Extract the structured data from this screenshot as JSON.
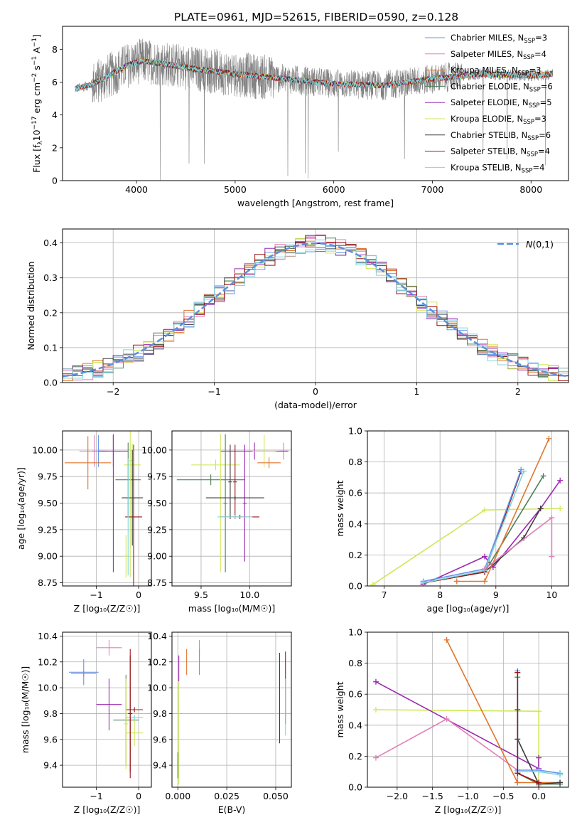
{
  "figure": {
    "title": "PLATE=0961, MJD=52615, FIBERID=0590, z=0.128"
  },
  "chart_data": [
    {
      "id": "spectrum",
      "type": "line",
      "xlabel": "wavelength [Angstrom, rest frame]",
      "ylabel_main": "Flux [f",
      "ylabel_parts": [
        "Flux [f",
        "λ",
        "10",
        "−17",
        " erg cm",
        "−2",
        " s",
        "−1",
        " A",
        "−1",
        "]"
      ],
      "xlim": [
        3250,
        8380
      ],
      "ylim": [
        0,
        9.4
      ],
      "xticks": [
        4000,
        5000,
        6000,
        7000,
        8000
      ],
      "yticks": [
        0,
        2,
        4,
        6,
        8
      ],
      "grid": false,
      "legend_position": "right",
      "data_range": [
        3380,
        8220
      ],
      "series": [
        {
          "name": "Chabrier MILES, N",
          "sub": "SSP",
          "suffix": "=3",
          "color": "#6495ed"
        },
        {
          "name": "Salpeter MILES, N",
          "sub": "SSP",
          "suffix": "=4",
          "color": "#e07fb8"
        },
        {
          "name": "Kroupa MILES, N",
          "sub": "SSP",
          "suffix": "=3",
          "color": "#e0762e"
        },
        {
          "name": "Chabrier ELODIE, N",
          "sub": "SSP",
          "suffix": "=6",
          "color": "#4f7f5a"
        },
        {
          "name": "Salpeter ELODIE, N",
          "sub": "SSP",
          "suffix": "=5",
          "color": "#9b27b0"
        },
        {
          "name": "Kroupa ELODIE, N",
          "sub": "SSP",
          "suffix": "=3",
          "color": "#cfe85a"
        },
        {
          "name": "Chabrier STELIB, N",
          "sub": "SSP",
          "suffix": "=6",
          "color": "#3d3d3d"
        },
        {
          "name": "Salpeter STELIB, N",
          "sub": "SSP",
          "suffix": "=4",
          "color": "#a01515"
        },
        {
          "name": "Kroupa STELIB, N",
          "sub": "SSP",
          "suffix": "=4",
          "color": "#7fd6dc"
        }
      ],
      "data_color": "#808080",
      "continuum_points": [
        [
          3380,
          5.6
        ],
        [
          3520,
          5.8
        ],
        [
          3700,
          6.3
        ],
        [
          3900,
          7.0
        ],
        [
          4050,
          7.3
        ],
        [
          4300,
          7.1
        ],
        [
          4600,
          6.8
        ],
        [
          5000,
          6.5
        ],
        [
          5500,
          6.2
        ],
        [
          6000,
          5.9
        ],
        [
          6500,
          5.8
        ],
        [
          7000,
          6.2
        ],
        [
          7500,
          6.5
        ],
        [
          8000,
          6.4
        ],
        [
          8220,
          6.5
        ]
      ]
    },
    {
      "id": "residuals",
      "type": "bar",
      "xlabel": "(data-model)/error",
      "ylabel": "Normed distribution",
      "xlim": [
        -2.5,
        2.5
      ],
      "ylim": [
        0,
        0.44
      ],
      "xticks": [
        -2,
        -1,
        0,
        1,
        2
      ],
      "yticks": [
        0.0,
        0.1,
        0.2,
        0.3,
        0.4
      ],
      "grid": true,
      "legend": "N(0,1)",
      "legend_color": "#5b8fe0",
      "bin_width": 0.1,
      "normal_curve": {
        "mean": 0,
        "sigma": 1
      }
    },
    {
      "id": "age-vs-Z",
      "type": "scatter",
      "xlabel": "Z [log₁₀(Z/Z☉)]",
      "ylabel": "age  [log₁₀(age/yr)]",
      "xlim": [
        -1.8,
        0.3
      ],
      "ylim": [
        8.72,
        10.18
      ],
      "xticks": [
        -1,
        0
      ],
      "yticks": [
        8.75,
        9.0,
        9.25,
        9.5,
        9.75,
        10.0
      ],
      "grid": true,
      "points": [
        {
          "x": -1.05,
          "y": 9.99,
          "xerr": 0.35,
          "yerr": 0.15,
          "color": "#e07fb8"
        },
        {
          "x": -0.95,
          "y": 9.99,
          "xerr": 0.15,
          "yerr": 0.15,
          "color": "#6495ed"
        },
        {
          "x": -1.2,
          "y": 9.88,
          "xerr": 0.55,
          "yerr": 0.25,
          "color": "#e0762e"
        },
        {
          "x": -0.6,
          "y": 9.99,
          "xerr": 0.35,
          "yerr": 0.15,
          "color": "#9b27b0"
        },
        {
          "x": -0.15,
          "y": 9.86,
          "xerr": 0.2,
          "yerr": 0.2,
          "color": "#cfe85a"
        },
        {
          "x": -0.6,
          "y": 9.5,
          "xerr": 0.01,
          "yerr": 0.65,
          "color": "#9b27b0"
        },
        {
          "x": -0.25,
          "y": 9.72,
          "xerr": 0.3,
          "yerr": 0.35,
          "color": "#4f7f5a"
        },
        {
          "x": -0.2,
          "y": 9.9,
          "xerr": 0.05,
          "yerr": 1.1,
          "color": "#cfe85a"
        },
        {
          "x": -0.3,
          "y": 9.0,
          "xerr": 0.05,
          "yerr": 0.2,
          "color": "#cfe85a"
        },
        {
          "x": -0.15,
          "y": 9.55,
          "xerr": 0.25,
          "yerr": 0.45,
          "color": "#3d3d3d"
        },
        {
          "x": -0.12,
          "y": 9.37,
          "xerr": 0.2,
          "yerr": 0.68,
          "color": "#a01515"
        },
        {
          "x": -0.25,
          "y": 9.37,
          "xerr": 0.01,
          "yerr": 0.55,
          "color": "#7fd6dc"
        }
      ]
    },
    {
      "id": "age-vs-mass",
      "type": "scatter",
      "xlabel": "mass [log₁₀(M/M☉)]",
      "xlim": [
        9.2,
        10.43
      ],
      "ylim": [
        8.72,
        10.18
      ],
      "xticks": [
        9.5,
        10.0
      ],
      "yticks": [
        8.75,
        9.0,
        9.25,
        9.5,
        9.75,
        10.0
      ],
      "grid": true,
      "points": [
        {
          "x": 10.35,
          "y": 9.99,
          "xerr": 0.05,
          "yerr": 0.08,
          "color": "#e07fb8"
        },
        {
          "x": 10.05,
          "y": 9.99,
          "xerr": 0.35,
          "yerr": 0.08,
          "color": "#9b27b0"
        },
        {
          "x": 10.15,
          "y": 9.99,
          "xerr": 0.12,
          "yerr": 0.15,
          "color": "#cfe85a"
        },
        {
          "x": 10.2,
          "y": 9.88,
          "xerr": 0.12,
          "yerr": 0.05,
          "color": "#e0762e"
        },
        {
          "x": 9.65,
          "y": 9.86,
          "xerr": 0.25,
          "yerr": 0.05,
          "color": "#cfe85a"
        },
        {
          "x": 9.6,
          "y": 9.72,
          "xerr": 0.35,
          "yerr": 0.05,
          "color": "#4f7f5a"
        },
        {
          "x": 9.7,
          "y": 9.5,
          "xerr": 0.02,
          "yerr": 0.65,
          "color": "#cfe85a"
        },
        {
          "x": 9.75,
          "y": 9.5,
          "xerr": 0.02,
          "yerr": 0.65,
          "color": "#4f7f5a"
        },
        {
          "x": 9.8,
          "y": 9.7,
          "xerr": 0.02,
          "yerr": 0.35,
          "color": "#3d3d3d"
        },
        {
          "x": 9.85,
          "y": 9.7,
          "xerr": 0.02,
          "yerr": 0.35,
          "color": "#a01515"
        },
        {
          "x": 9.95,
          "y": 9.5,
          "xerr": 0.02,
          "yerr": 0.55,
          "color": "#9b27b0"
        },
        {
          "x": 9.85,
          "y": 9.55,
          "xerr": 0.3,
          "yerr": 0.02,
          "color": "#3d3d3d"
        },
        {
          "x": 9.9,
          "y": 9.37,
          "xerr": 0.2,
          "yerr": 0.02,
          "color": "#a01515"
        },
        {
          "x": 9.85,
          "y": 9.37,
          "xerr": 0.18,
          "yerr": 0.02,
          "color": "#7fd6dc"
        }
      ]
    },
    {
      "id": "weight-vs-age",
      "type": "line",
      "xlabel": "age  [log₁₀(age/yr)]",
      "ylabel": "mass weight",
      "xlim": [
        6.7,
        10.3
      ],
      "ylim": [
        0,
        1.0
      ],
      "xticks": [
        7,
        8,
        9,
        10
      ],
      "yticks": [
        0.0,
        0.2,
        0.4,
        0.6,
        0.8,
        1.0
      ],
      "grid": true,
      "series": [
        {
          "color": "#cfe85a",
          "points": [
            [
              6.8,
              0.01
            ],
            [
              8.8,
              0.49
            ],
            [
              10.15,
              0.5
            ]
          ]
        },
        {
          "color": "#9b27b0",
          "points": [
            [
              7.7,
              0.01
            ],
            [
              8.8,
              0.19
            ],
            [
              8.95,
              0.12
            ],
            [
              9.8,
              0.5
            ],
            [
              10.15,
              0.68
            ]
          ]
        },
        {
          "color": "#4f7f5a",
          "points": [
            [
              7.7,
              0.02
            ],
            [
              8.8,
              0.09
            ],
            [
              9.85,
              0.71
            ]
          ]
        },
        {
          "color": "#3d3d3d",
          "points": [
            [
              7.7,
              0.02
            ],
            [
              8.8,
              0.09
            ],
            [
              9.5,
              0.31
            ],
            [
              9.8,
              0.5
            ]
          ]
        },
        {
          "color": "#e0762e",
          "points": [
            [
              8.3,
              0.03
            ],
            [
              8.8,
              0.03
            ],
            [
              9.95,
              0.95
            ]
          ]
        },
        {
          "color": "#a01515",
          "points": [
            [
              7.7,
              0.02
            ],
            [
              8.8,
              0.09
            ],
            [
              9.45,
              0.74
            ]
          ]
        },
        {
          "color": "#6495ed",
          "points": [
            [
              7.7,
              0.03
            ],
            [
              8.8,
              0.11
            ],
            [
              9.45,
              0.75
            ]
          ]
        },
        {
          "color": "#7fd6dc",
          "points": [
            [
              7.7,
              0.02
            ],
            [
              8.8,
              0.1
            ],
            [
              9.5,
              0.74
            ]
          ]
        },
        {
          "color": "#e07fb8",
          "points": [
            [
              8.8,
              0.11
            ],
            [
              10.0,
              0.44
            ],
            [
              10.0,
              0.19
            ]
          ]
        }
      ]
    },
    {
      "id": "mass-vs-Z",
      "type": "scatter",
      "xlabel": "Z [log₁₀(Z/Z☉)]",
      "ylabel": "mass [log₁₀(M/M☉)]",
      "xlim": [
        -1.8,
        0.3
      ],
      "ylim": [
        9.23,
        10.43
      ],
      "xticks": [
        -1,
        0
      ],
      "yticks": [
        9.4,
        9.6,
        9.8,
        10.0,
        10.2,
        10.4
      ],
      "grid": true,
      "points": [
        {
          "x": -0.7,
          "y": 10.31,
          "xerr": 0.3,
          "yerr": 0.06,
          "color": "#e07fb8"
        },
        {
          "x": -1.3,
          "y": 10.12,
          "xerr": 0.35,
          "yerr": 0.1,
          "color": "#6495ed"
        },
        {
          "x": -1.3,
          "y": 10.11,
          "xerr": 0.3,
          "yerr": 0.02,
          "color": "#e0762e"
        },
        {
          "x": -0.7,
          "y": 9.87,
          "xerr": 0.3,
          "yerr": 0.2,
          "color": "#9b27b0"
        },
        {
          "x": -0.1,
          "y": 9.83,
          "xerr": 0.2,
          "yerr": 0.02,
          "color": "#a01515"
        },
        {
          "x": -0.3,
          "y": 9.75,
          "xerr": 0.3,
          "yerr": 0.35,
          "color": "#4f7f5a"
        },
        {
          "x": -0.1,
          "y": 9.65,
          "xerr": 0.2,
          "yerr": 0.1,
          "color": "#cfe85a"
        },
        {
          "x": -0.3,
          "y": 9.72,
          "xerr": 0.05,
          "yerr": 0.35,
          "color": "#cfe85a"
        },
        {
          "x": -0.2,
          "y": 9.8,
          "xerr": 0.05,
          "yerr": 0.45,
          "color": "#3d3d3d"
        },
        {
          "x": -0.1,
          "y": 9.77,
          "xerr": 0.2,
          "yerr": 0.02,
          "color": "#7fd6dc"
        },
        {
          "x": -0.2,
          "y": 9.8,
          "xerr": 0.02,
          "yerr": 0.5,
          "color": "#a01515"
        }
      ]
    },
    {
      "id": "mass-vs-ebv",
      "type": "scatter",
      "xlabel": "E(B-V)",
      "xlim": [
        -0.003,
        0.058
      ],
      "ylim": [
        9.23,
        10.43
      ],
      "xticks": [
        0.0,
        0.025,
        0.05
      ],
      "xticklabels": [
        "0.000",
        "0.025",
        "0.050"
      ],
      "yticks": [
        9.4,
        9.6,
        9.8,
        10.0,
        10.2,
        10.4
      ],
      "grid": true,
      "points": [
        {
          "x": 0.011,
          "y": 10.31,
          "xerr": 0,
          "yerr": 0.06,
          "color": "#e07fb8"
        },
        {
          "x": 0.011,
          "y": 10.2,
          "xerr": 0,
          "yerr": 0.1,
          "color": "#6495ed"
        },
        {
          "x": 0.0045,
          "y": 10.2,
          "xerr": 0,
          "yerr": 0.1,
          "color": "#e0762e"
        },
        {
          "x": 0.0005,
          "y": 10.15,
          "xerr": 0,
          "yerr": 0.1,
          "color": "#9b27b0"
        },
        {
          "x": 0.0005,
          "y": 9.65,
          "xerr": 0,
          "yerr": 0.4,
          "color": "#cfe85a"
        },
        {
          "x": 0.0,
          "y": 9.4,
          "xerr": 0,
          "yerr": 0.1,
          "color": "#4f7f5a"
        },
        {
          "x": 0.052,
          "y": 9.92,
          "xerr": 0,
          "yerr": 0.35,
          "color": "#3d3d3d"
        },
        {
          "x": 0.055,
          "y": 10.0,
          "xerr": 0,
          "yerr": 0.28,
          "color": "#a01515"
        },
        {
          "x": 0.055,
          "y": 9.85,
          "xerr": 0,
          "yerr": 0.22,
          "color": "#7fd6dc"
        }
      ]
    },
    {
      "id": "weight-vs-Z",
      "type": "line",
      "xlabel": "Z [log₁₀(Z/Z☉)]",
      "ylabel": "mass weight",
      "xlim": [
        -2.42,
        0.42
      ],
      "ylim": [
        0,
        1.0
      ],
      "xticks": [
        -2.0,
        -1.5,
        -1.0,
        -0.5,
        0.0
      ],
      "xticklabels": [
        "−2.0",
        "−1.5",
        "−1.0",
        "−0.5",
        "0.0"
      ],
      "yticks": [
        0.0,
        0.2,
        0.4,
        0.6,
        0.8,
        1.0
      ],
      "grid": true,
      "series": [
        {
          "color": "#cfe85a",
          "points": [
            [
              -2.3,
              0.5
            ],
            [
              0.0,
              0.49
            ],
            [
              0.0,
              0.01
            ]
          ]
        },
        {
          "color": "#9b27b0",
          "points": [
            [
              -2.3,
              0.68
            ],
            [
              -0.0,
              0.12
            ],
            [
              0.0,
              0.19
            ]
          ]
        },
        {
          "color": "#e07fb8",
          "points": [
            [
              -2.3,
              0.19
            ],
            [
              -1.3,
              0.44
            ],
            [
              -0.3,
              0.11
            ],
            [
              -0.3,
              0.03
            ]
          ]
        },
        {
          "color": "#e0762e",
          "points": [
            [
              -1.3,
              0.95
            ],
            [
              -0.3,
              0.03
            ],
            [
              0.3,
              0.03
            ]
          ]
        },
        {
          "color": "#4f7f5a",
          "points": [
            [
              -0.3,
              0.71
            ],
            [
              -0.3,
              0.09
            ],
            [
              0.0,
              0.02
            ],
            [
              0.3,
              0.02
            ]
          ]
        },
        {
          "color": "#3d3d3d",
          "points": [
            [
              -0.3,
              0.5
            ],
            [
              -0.3,
              0.31
            ],
            [
              0.0,
              0.02
            ],
            [
              0.3,
              0.03
            ]
          ]
        },
        {
          "color": "#6495ed",
          "points": [
            [
              -0.3,
              0.75
            ],
            [
              -0.3,
              0.11
            ],
            [
              0.0,
              0.11
            ],
            [
              0.3,
              0.09
            ]
          ]
        },
        {
          "color": "#7fd6dc",
          "points": [
            [
              -0.3,
              0.74
            ],
            [
              -0.3,
              0.1
            ],
            [
              0.0,
              0.1
            ],
            [
              0.3,
              0.08
            ]
          ]
        },
        {
          "color": "#a01515",
          "points": [
            [
              -0.3,
              0.74
            ],
            [
              -0.3,
              0.09
            ],
            [
              0.0,
              0.03
            ]
          ]
        }
      ]
    }
  ]
}
